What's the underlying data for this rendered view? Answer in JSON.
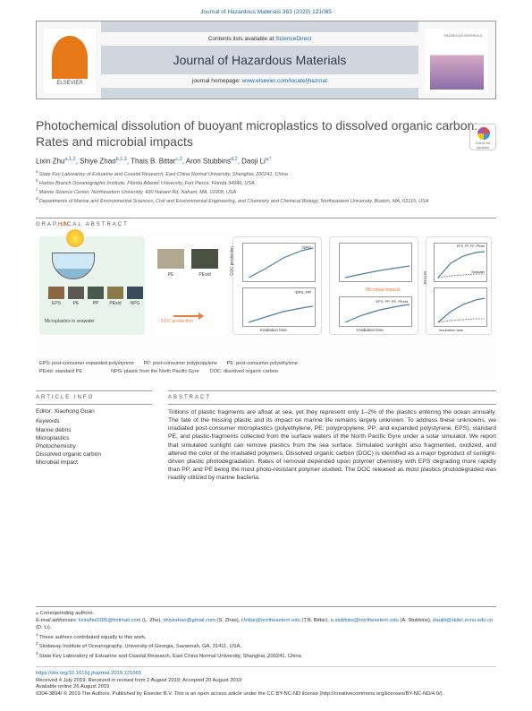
{
  "journal": {
    "topline": "Journal of Hazardous Materials 383 (2020) 121065",
    "contents_at": "Contents lists available at ",
    "contents_link": "ScienceDirect",
    "name": "Journal of Hazardous Materials",
    "homepage_label": "journal homepage: ",
    "homepage_url": "www.elsevier.com/locate/jhazmat",
    "publisher": "ELSEVIER",
    "cover_label": "HAZARDOUS MATERIALS"
  },
  "title": "Photochemical dissolution of buoyant microplastics to dissolved organic carbon: Rates and microbial impacts",
  "check_updates": "Check for updates",
  "authors_line": "Lixin Zhu",
  "authors": [
    {
      "name": "Lixin Zhu",
      "sup": "a,1,2"
    },
    {
      "name": "Shiye Zhao",
      "sup": "b,1,3"
    },
    {
      "name": "Thais B. Bittar",
      "sup": "c,2"
    },
    {
      "name": "Aron Stubbins",
      "sup": "d,2"
    },
    {
      "name": "Daoji Li",
      "sup": "a,*"
    }
  ],
  "affiliations": [
    {
      "sup": "a",
      "text": "State Key Laboratory of Estuarine and Coastal Research, East China Normal University, Shanghai, 200241, China"
    },
    {
      "sup": "b",
      "text": "Harbor Branch Oceanographic Institute, Florida Atlantic University, Fort Pierce, Florida 34946, USA"
    },
    {
      "sup": "c",
      "text": "Marine Science Center, Northeastern University, 430 Nahant Rd, Nahant, MA, 01908, USA"
    },
    {
      "sup": "d",
      "text": "Departments of Marine and Environmental Sciences, Civil and Environmental Engineering, and Chemistry and Chemical Biology, Northeastern University, Boston, MA, 02115, USA"
    }
  ],
  "graphical_abstract_heading": "GRAPHICAL ABSTRACT",
  "graphical_abstract": {
    "uv_label": "UV",
    "swatches": [
      "EPS",
      "PE",
      "PP",
      "PEstd",
      "NPG"
    ],
    "panel1_caption": "Microplastics in seawater",
    "panel2_top": [
      "PE",
      "PEstd"
    ],
    "panel2_arrow": "DOC production",
    "panel3_labels": [
      "NPG",
      "EPS, PP",
      "Microbial impacts",
      "Irradiation time"
    ],
    "panel4_labels": [
      "EPS, PP, PE, PEstd",
      "Irradiation time"
    ],
    "panel5_labels": [
      "EPS, PP, PE, PEstd",
      "Seawater",
      "Incubation time",
      "EPS, PP, PE, PEstd",
      "Seawater",
      "Incubation time"
    ],
    "legend": [
      "EPS: post-consumer expanded polystyrene",
      "PP: post-consumer polypropylene",
      "PE: post-consumer polyethylene",
      "PEstd: standard PE",
      "NPG: plastic from the North Pacific Gyre",
      "DOC: dissolved organic carbon"
    ]
  },
  "article_info": {
    "heading": "ARTICLE INFO",
    "editor_label": "Editor: Xiaohong Guan",
    "keywords_label": "Keywords:",
    "keywords": [
      "Marine debris",
      "Microplastics",
      "Photochemistry",
      "Dissolved organic carbon",
      "Microbial impact"
    ]
  },
  "abstract": {
    "heading": "ABSTRACT",
    "text": "Trillions of plastic fragments are afloat at sea, yet they represent only 1–2% of the plastics entering the ocean annually. The fate of the missing plastic and its impact on marine life remains largely unknown. To address these unknowns, we irradiated post-consumer microplastics (polyethylene, PE; polypropylene, PP; and expanded polystyrene, EPS), standard PE, and plastic-fragments collected from the surface waters of the North Pacific Gyre under a solar simulator. We report that simulated sunlight can remove plastics from the sea surface. Simulated sunlight also fragmented, oxidized, and altered the color of the irradiated polymers. Dissolved organic carbon (DOC) is identified as a major byproduct of sunlight-driven plastic photodegradation. Rates of removal depended upon polymer chemistry with EPS degrading more rapidly than PP, and PE being the most photo-resistant polymer studied. The DOC released as most plastics photodegraded was readily utilized by marine bacteria."
  },
  "footer": {
    "corresponding": "⁎ Corresponding authors.",
    "emails_label": "E-mail addresses: ",
    "emails": [
      {
        "addr": "lixinzhu0305@hotmail.com",
        "who": "(L. Zhu)"
      },
      {
        "addr": "shiyezhao@gmail.com",
        "who": "(S. Zhao)"
      },
      {
        "addr": "t.bittar@northeastern.edu",
        "who": "(T.B. Bittar)"
      },
      {
        "addr": "a.stubbins@northeastern.edu",
        "who": "(A. Stubbins)"
      },
      {
        "addr": "daojili@sklec.ecnu.edu.cn",
        "who": "(D. Li)"
      }
    ],
    "notes": [
      {
        "sup": "1",
        "text": "These authors contributed equally to this work."
      },
      {
        "sup": "2",
        "text": "Skidaway Institute of Oceanography, University of Georgia, Savannah, GA, 31411, USA."
      },
      {
        "sup": "3",
        "text": "State Key Laboratory of Estuarine and Coastal Research, East China Normal University, Shanghai, 200241, China"
      }
    ],
    "doi": "https://doi.org/10.1016/j.jhazmat.2019.121065",
    "received": "Received 4 July 2019; Received in revised form 2 August 2019; Accepted 20 August 2019",
    "available": "Available online 26 August 2019",
    "issn": "0304-3894/ © 2019 The Authors. Published by Elsevier B.V. This is an open access article under the CC BY-NC-ND license (http://creativecommons.org/licenses/BY-NC-ND/4.0/)."
  }
}
